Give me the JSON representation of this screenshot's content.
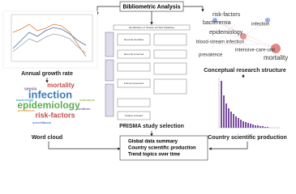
{
  "header": {
    "title": "Bibliometric Analysis"
  },
  "panels": {
    "growth": "Annual growth rate",
    "structure": "Conceptual research structure",
    "prisma": "PRISMA study selection",
    "wordcloud": "Word cloud",
    "country": "Country scientific production"
  },
  "network_labels": [
    "risk-factors",
    "bacteremia",
    "infection",
    "epidemiology",
    "blood-stream infection",
    "mortality",
    "prevalence",
    "intensive-care-unit"
  ],
  "word_cloud": [
    "infection",
    "epidemiology",
    "mortality",
    "risk-factors",
    "sepsis",
    "bacteremia",
    "prevalence",
    "outcomes",
    "children",
    "surveillance"
  ],
  "prisma_boxes": [
    "Identification of Studies via Web Database",
    "Records identified",
    "Records screened",
    "Full-text assessed",
    "Studies included"
  ],
  "summary": [
    "Global data summary",
    "Country scientific production",
    "Trend topics over time"
  ]
}
